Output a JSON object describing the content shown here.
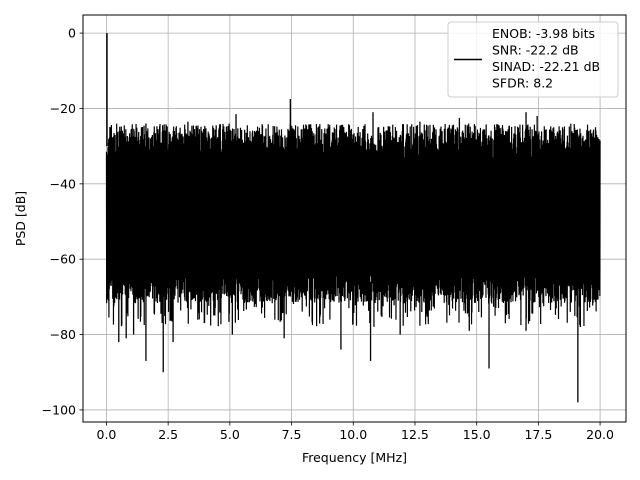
{
  "chart_data": {
    "type": "line",
    "xlabel": "Frequency [MHz]",
    "ylabel": "PSD [dB]",
    "xlim": [
      -0.95,
      21.05
    ],
    "ylim": [
      -103.2,
      4.8
    ],
    "xticks": [
      0,
      2.5,
      5,
      7.5,
      10,
      12.5,
      15,
      17.5,
      20
    ],
    "xtick_labels": [
      "0.0",
      "2.5",
      "5.0",
      "7.5",
      "10.0",
      "12.5",
      "15.0",
      "17.5",
      "20.0"
    ],
    "yticks": [
      0,
      -20,
      -40,
      -60,
      -80,
      -100
    ],
    "ytick_labels": [
      "0",
      "−20",
      "−40",
      "−60",
      "−80",
      "−100"
    ],
    "grid": true,
    "legend_position": "top-right",
    "legend": {
      "lines": [
        "ENOB: -3.98 bits",
        "SNR: -22.2 dB",
        "SINAD: -22.21 dB",
        "SFDR: 8.2"
      ]
    },
    "series": [
      {
        "color": "#000000",
        "x_range": [
          0,
          20
        ],
        "dc_peak": {
          "x": 0.02,
          "y": 0
        },
        "noise_band": {
          "peaks_min": -31,
          "peaks_max": -24,
          "troughs_min": -78,
          "troughs_max": -64
        },
        "spurs": [
          {
            "x": 7.45,
            "y": -17.5
          },
          {
            "x": 5.25,
            "y": -21.5
          },
          {
            "x": 10.8,
            "y": -21.0
          },
          {
            "x": 17.0,
            "y": -21.0
          },
          {
            "x": 17.45,
            "y": -22.0
          },
          {
            "x": 3.3,
            "y": -23.5
          },
          {
            "x": 1.6,
            "y": -24.0
          },
          {
            "x": 14.3,
            "y": -22.5
          },
          {
            "x": 12.7,
            "y": -23.5
          }
        ],
        "dips": [
          {
            "x": 19.1,
            "y": -98
          },
          {
            "x": 2.3,
            "y": -90
          },
          {
            "x": 15.5,
            "y": -89
          },
          {
            "x": 1.6,
            "y": -87
          },
          {
            "x": 10.7,
            "y": -87
          },
          {
            "x": 9.5,
            "y": -84
          },
          {
            "x": 0.5,
            "y": -82
          },
          {
            "x": 0.8,
            "y": -81
          },
          {
            "x": 1.1,
            "y": -80
          },
          {
            "x": 2.7,
            "y": -82
          },
          {
            "x": 5.1,
            "y": -80
          },
          {
            "x": 7.2,
            "y": -81
          },
          {
            "x": 11.9,
            "y": -80
          },
          {
            "x": 14.7,
            "y": -79
          },
          {
            "x": 17.0,
            "y": -79
          },
          {
            "x": 19.2,
            "y": -78
          }
        ]
      }
    ]
  }
}
